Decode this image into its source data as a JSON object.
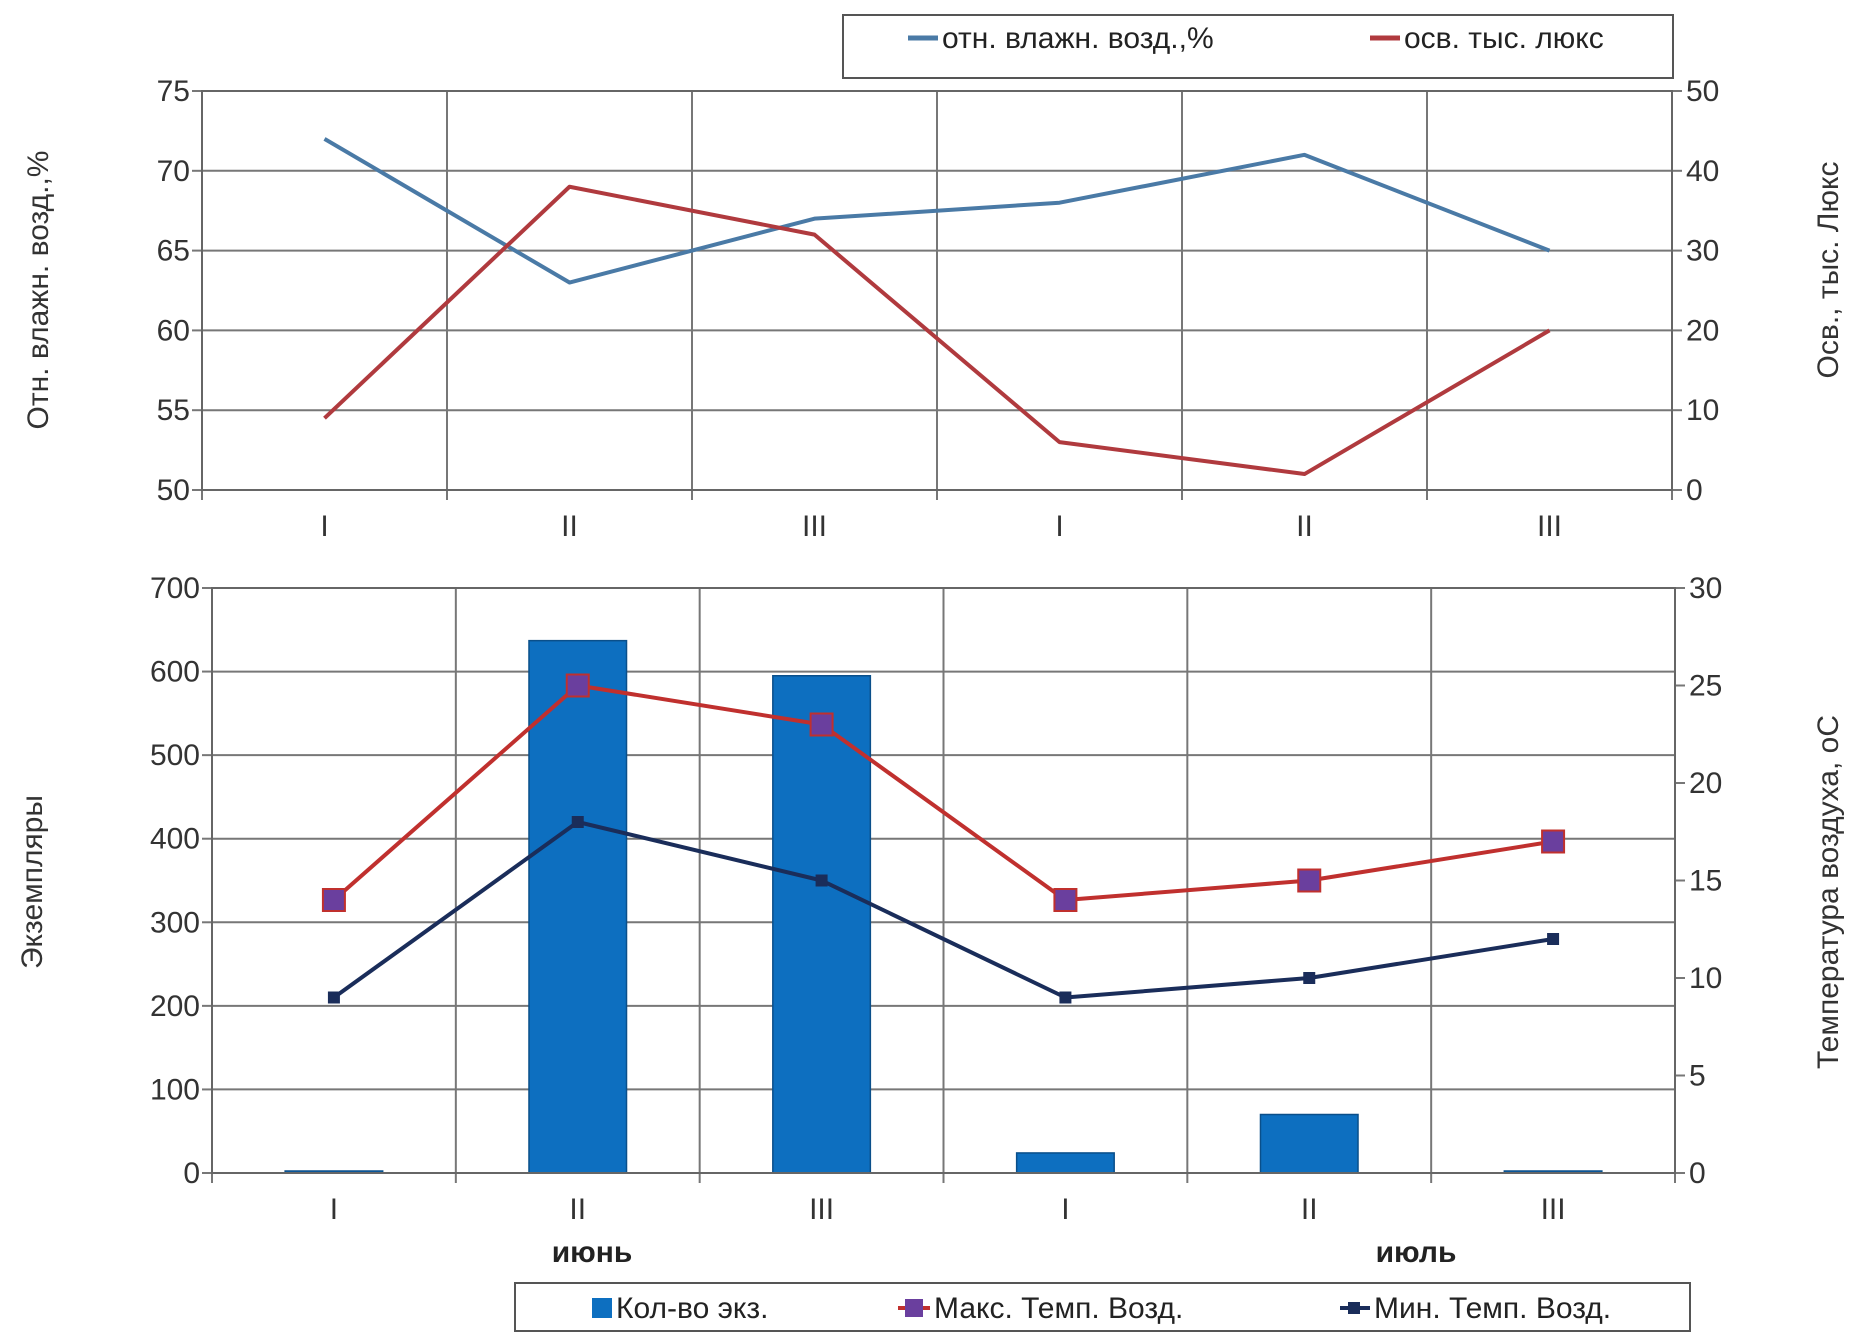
{
  "chart_data": [
    {
      "type": "line",
      "categories": [
        "I",
        "II",
        "III",
        "I",
        "II",
        "III"
      ],
      "ylabel": "Отн. влажн. возд.,%",
      "y2label": "Осв., тыс. Люкс",
      "ylim": [
        50,
        75
      ],
      "y2lim": [
        0,
        50
      ],
      "yticks": [
        "50",
        "55",
        "60",
        "65",
        "70",
        "75"
      ],
      "y2ticks": [
        "0",
        "10",
        "20",
        "30",
        "40",
        "50"
      ],
      "grid": true,
      "legend": "top-right",
      "series": [
        {
          "name": "отн. влажн. возд.,%",
          "axis": "left",
          "color": "#4a7aa6",
          "values": [
            72,
            63,
            67,
            68,
            71,
            65
          ]
        },
        {
          "name": "осв. тыс. люкс",
          "axis": "right",
          "color": "#b03a3e",
          "values": [
            9,
            38,
            32,
            6,
            2,
            20
          ]
        }
      ]
    },
    {
      "type": "bar",
      "categories": [
        "I",
        "II",
        "III",
        "I",
        "II",
        "III"
      ],
      "groups": [
        "июнь",
        "июль"
      ],
      "ylabel": "Экземпляры",
      "y2label": "Температура воздуха, оС",
      "ylim": [
        0,
        700
      ],
      "y2lim": [
        0,
        30
      ],
      "yticks": [
        "0",
        "100",
        "200",
        "300",
        "400",
        "500",
        "600",
        "700"
      ],
      "y2ticks": [
        "0",
        "5",
        "10",
        "15",
        "20",
        "25",
        "30"
      ],
      "grid": true,
      "legend": "bottom",
      "series": [
        {
          "name": "Кол-во экз.",
          "kind": "bar",
          "axis": "left",
          "color": "#0d6fc0",
          "values": [
            0,
            637,
            595,
            24,
            70,
            0
          ]
        },
        {
          "name": "Макс. Темп. Возд.",
          "kind": "line",
          "axis": "right",
          "color": "#c0302e",
          "marker_color": "#6a3f9e",
          "values": [
            14,
            25,
            23,
            14,
            15,
            17
          ]
        },
        {
          "name": "Мин. Темп. Возд.",
          "kind": "line",
          "axis": "right",
          "color": "#1a2d5a",
          "values": [
            9,
            18,
            15,
            9,
            10,
            12
          ]
        }
      ]
    }
  ]
}
